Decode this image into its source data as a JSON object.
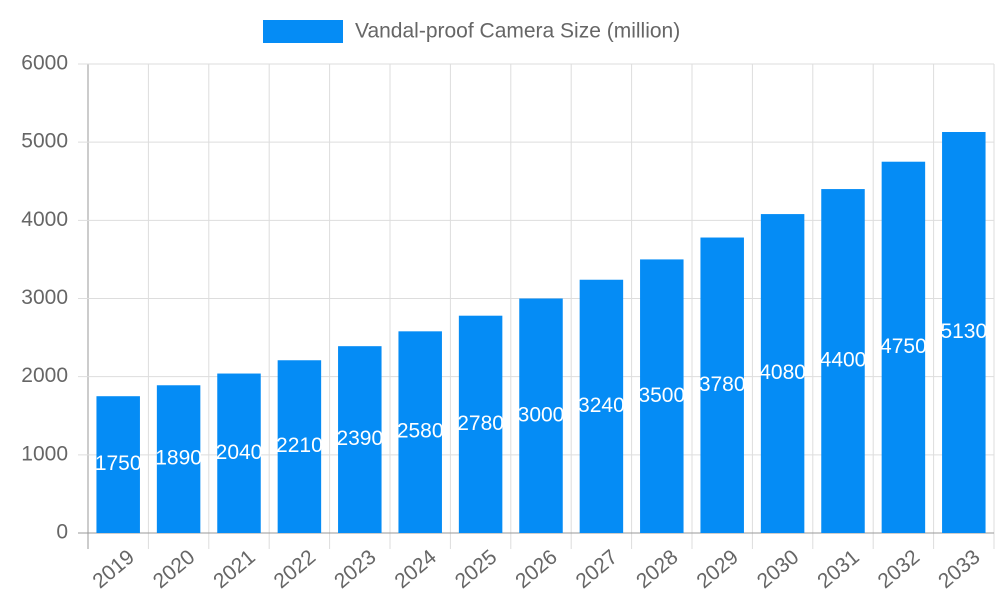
{
  "chart_data": {
    "type": "bar",
    "categories": [
      "2019",
      "2020",
      "2021",
      "2022",
      "2023",
      "2024",
      "2025",
      "2026",
      "2027",
      "2028",
      "2029",
      "2030",
      "2031",
      "2032",
      "2033"
    ],
    "series": [
      {
        "name": "Vandal-proof Camera Size (million)",
        "color": "#058cf5",
        "values": [
          1750,
          1890,
          2040,
          2210,
          2390,
          2580,
          2780,
          3000,
          3240,
          3500,
          3780,
          4080,
          4400,
          4750,
          5130
        ]
      }
    ],
    "ylim": [
      0,
      6000
    ],
    "yticks": [
      0,
      1000,
      2000,
      3000,
      4000,
      5000,
      6000
    ],
    "grid": true,
    "legend": "top"
  }
}
